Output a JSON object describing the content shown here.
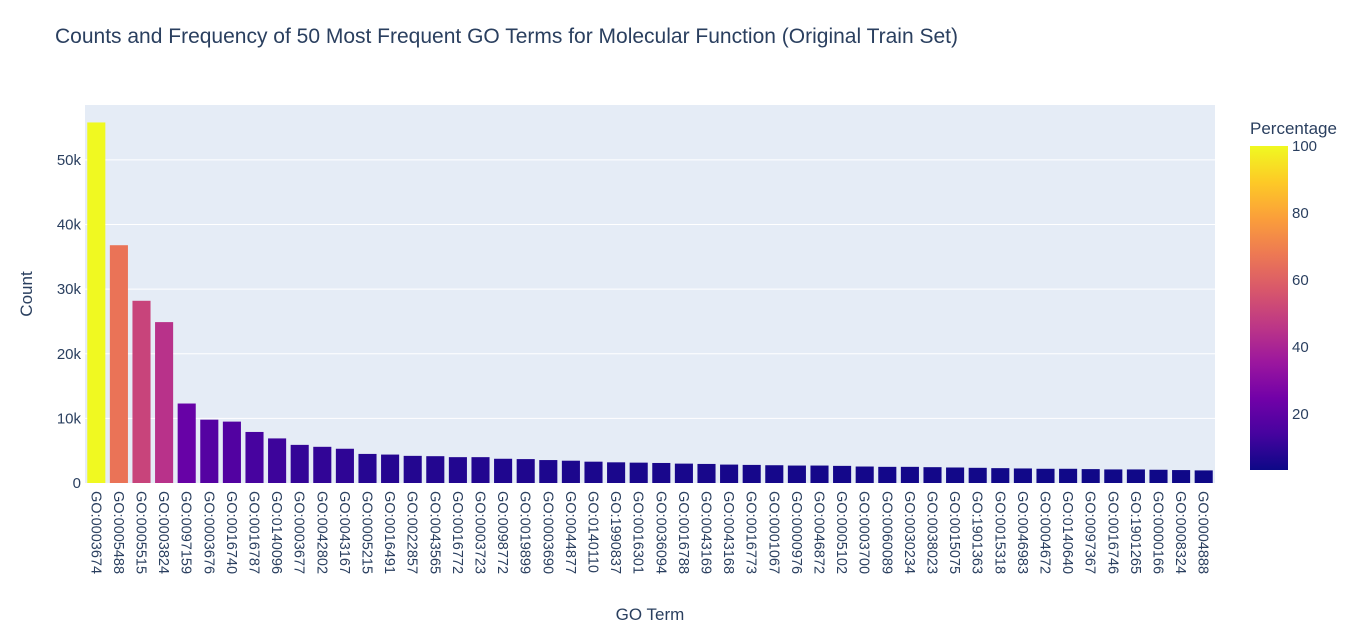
{
  "chart_data": {
    "type": "bar",
    "title": "Counts and Frequency of 50 Most Frequent GO Terms for Molecular Function (Original Train Set)",
    "xlabel": "GO Term",
    "ylabel": "Count",
    "ylim": [
      0,
      58500
    ],
    "yticks": [
      0,
      10000,
      20000,
      30000,
      40000,
      50000
    ],
    "ytick_labels": [
      "0",
      "10k",
      "20k",
      "30k",
      "40k",
      "50k"
    ],
    "grid": true,
    "colorbar": {
      "title": "Percentage",
      "range": [
        3.3,
        100
      ],
      "ticks": [
        20,
        40,
        60,
        80,
        100
      ],
      "tick_labels": [
        "20",
        "40",
        "60",
        "80",
        "100"
      ],
      "colorscale": [
        "#0d0887",
        "#46039f",
        "#7201a8",
        "#9c179e",
        "#bd3786",
        "#d8576b",
        "#ed7953",
        "#fb9f3a",
        "#fdca26",
        "#f0f921"
      ]
    },
    "categories": [
      "GO:0003674",
      "GO:0005488",
      "GO:0005515",
      "GO:0003824",
      "GO:0097159",
      "GO:0003676",
      "GO:0016740",
      "GO:0016787",
      "GO:0140096",
      "GO:0003677",
      "GO:0042802",
      "GO:0043167",
      "GO:0005215",
      "GO:0016491",
      "GO:0022857",
      "GO:0043565",
      "GO:0016772",
      "GO:0003723",
      "GO:0098772",
      "GO:0019899",
      "GO:0003690",
      "GO:0044877",
      "GO:0140110",
      "GO:1990837",
      "GO:0016301",
      "GO:0036094",
      "GO:0016788",
      "GO:0043169",
      "GO:0043168",
      "GO:0016773",
      "GO:0001067",
      "GO:0000976",
      "GO:0046872",
      "GO:0005102",
      "GO:0003700",
      "GO:0060089",
      "GO:0030234",
      "GO:0038023",
      "GO:0015075",
      "GO:1901363",
      "GO:0015318",
      "GO:0046983",
      "GO:0004672",
      "GO:0140640",
      "GO:0097367",
      "GO:0016746",
      "GO:1901265",
      "GO:0000166",
      "GO:0008324",
      "GO:0004888"
    ],
    "values": [
      55800,
      36800,
      28200,
      24900,
      12300,
      9800,
      9500,
      7900,
      6900,
      5900,
      5600,
      5300,
      4500,
      4400,
      4200,
      4150,
      4000,
      4000,
      3750,
      3700,
      3550,
      3450,
      3300,
      3200,
      3150,
      3100,
      3000,
      2950,
      2850,
      2800,
      2750,
      2700,
      2700,
      2650,
      2550,
      2500,
      2500,
      2450,
      2400,
      2350,
      2300,
      2250,
      2200,
      2200,
      2150,
      2100,
      2100,
      2050,
      2000,
      1950
    ],
    "percentages": [
      100,
      66,
      50.5,
      44.6,
      22,
      17.6,
      17,
      14.2,
      12.4,
      10.6,
      10,
      9.5,
      8.1,
      7.9,
      7.5,
      7.4,
      7.2,
      7.2,
      6.7,
      6.6,
      6.4,
      6.2,
      5.9,
      5.7,
      5.6,
      5.6,
      5.4,
      5.3,
      5.1,
      5,
      4.9,
      4.8,
      4.8,
      4.7,
      4.6,
      4.5,
      4.5,
      4.4,
      4.3,
      4.2,
      4.1,
      4,
      3.9,
      3.9,
      3.9,
      3.8,
      3.8,
      3.7,
      3.6,
      3.5
    ]
  }
}
